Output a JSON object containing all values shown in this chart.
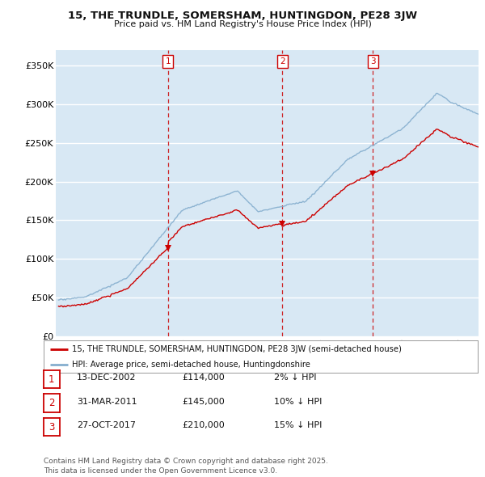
{
  "title_line1": "15, THE TRUNDLE, SOMERSHAM, HUNTINGDON, PE28 3JW",
  "title_line2": "Price paid vs. HM Land Registry's House Price Index (HPI)",
  "ylabel_ticks": [
    "£0",
    "£50K",
    "£100K",
    "£150K",
    "£200K",
    "£250K",
    "£300K",
    "£350K"
  ],
  "ytick_values": [
    0,
    50000,
    100000,
    150000,
    200000,
    250000,
    300000,
    350000
  ],
  "ylim": [
    0,
    370000
  ],
  "xlim_start": 1994.8,
  "xlim_end": 2025.5,
  "background_color": "#d8e8f4",
  "grid_color": "#ffffff",
  "sale_color": "#cc0000",
  "hpi_color": "#85aece",
  "dashed_line_color": "#cc0000",
  "transactions": [
    {
      "date_year": 2002.95,
      "price": 114000,
      "label": "1"
    },
    {
      "date_year": 2011.25,
      "price": 145000,
      "label": "2"
    },
    {
      "date_year": 2017.83,
      "price": 210000,
      "label": "3"
    }
  ],
  "legend_entry1": "15, THE TRUNDLE, SOMERSHAM, HUNTINGDON, PE28 3JW (semi-detached house)",
  "legend_entry2": "HPI: Average price, semi-detached house, Huntingdonshire",
  "table_rows": [
    {
      "num": "1",
      "date": "13-DEC-2002",
      "price": "£114,000",
      "pct": "2% ↓ HPI"
    },
    {
      "num": "2",
      "date": "31-MAR-2011",
      "price": "£145,000",
      "pct": "10% ↓ HPI"
    },
    {
      "num": "3",
      "date": "27-OCT-2017",
      "price": "£210,000",
      "pct": "15% ↓ HPI"
    }
  ],
  "footer": "Contains HM Land Registry data © Crown copyright and database right 2025.\nThis data is licensed under the Open Government Licence v3.0."
}
